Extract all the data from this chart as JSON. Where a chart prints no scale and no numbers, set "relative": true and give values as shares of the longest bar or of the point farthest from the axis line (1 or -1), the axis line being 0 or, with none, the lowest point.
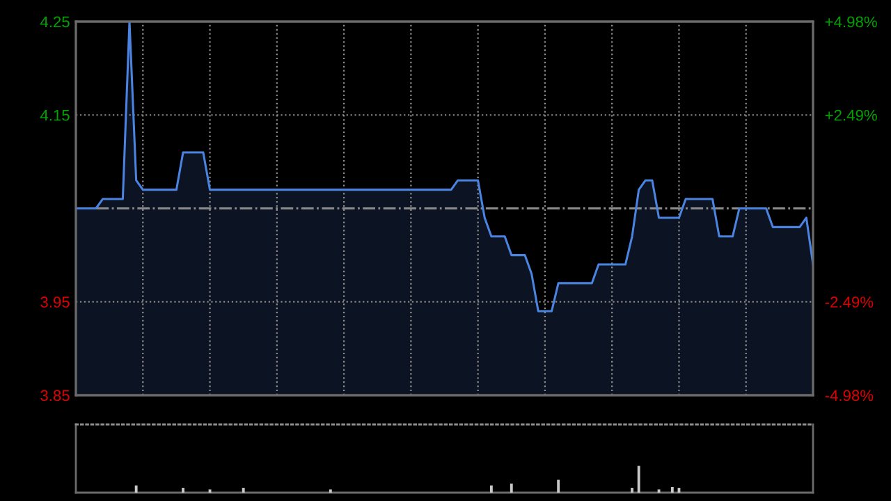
{
  "chart_data": [
    {
      "type": "area",
      "color": "#4a83e0",
      "categories": [
        null,
        null,
        null,
        null,
        null,
        null,
        null,
        null,
        null,
        null,
        null,
        null,
        null,
        null,
        null,
        null,
        null,
        null,
        null,
        null,
        null,
        null,
        null,
        null,
        null,
        null,
        null,
        null,
        null,
        null,
        null,
        null,
        null,
        null,
        null,
        null,
        null,
        null,
        null,
        null,
        null,
        null,
        null,
        null,
        null,
        null,
        null,
        null,
        null,
        null,
        null,
        null,
        null,
        null,
        null,
        null,
        null,
        null,
        null,
        null,
        null,
        null,
        null,
        null,
        null,
        null,
        null,
        null,
        null,
        null,
        null,
        null,
        null,
        null,
        null,
        null,
        null,
        null,
        null,
        null,
        null,
        null,
        null,
        null,
        null,
        null,
        null,
        null,
        null,
        null,
        null,
        null,
        null,
        null,
        null,
        null,
        null,
        null,
        null,
        null,
        null,
        null,
        null,
        null,
        null,
        null,
        null,
        null,
        null,
        null,
        null
      ],
      "values": [
        4.05,
        4.05,
        4.05,
        4.05,
        4.06,
        4.06,
        4.06,
        4.06,
        4.25,
        4.08,
        4.07,
        4.07,
        4.07,
        4.07,
        4.07,
        4.07,
        4.11,
        4.11,
        4.11,
        4.11,
        4.07,
        4.07,
        4.07,
        4.07,
        4.07,
        4.07,
        4.07,
        4.07,
        4.07,
        4.07,
        4.07,
        4.07,
        4.07,
        4.07,
        4.07,
        4.07,
        4.07,
        4.07,
        4.07,
        4.07,
        4.07,
        4.07,
        4.07,
        4.07,
        4.07,
        4.07,
        4.07,
        4.07,
        4.07,
        4.07,
        4.07,
        4.07,
        4.07,
        4.07,
        4.07,
        4.07,
        4.07,
        4.08,
        4.08,
        4.08,
        4.08,
        4.04,
        4.02,
        4.02,
        4.02,
        4.0,
        4.0,
        4.0,
        3.98,
        3.94,
        3.94,
        3.94,
        3.97,
        3.97,
        3.97,
        3.97,
        3.97,
        3.97,
        3.99,
        3.99,
        3.99,
        3.99,
        3.99,
        4.02,
        4.07,
        4.08,
        4.08,
        4.04,
        4.04,
        4.04,
        4.04,
        4.06,
        4.06,
        4.06,
        4.06,
        4.06,
        4.02,
        4.02,
        4.02,
        4.05,
        4.05,
        4.05,
        4.05,
        4.05,
        4.03,
        4.03,
        4.03,
        4.03,
        4.03,
        4.04,
        3.99
      ],
      "ylim": [
        3.85,
        4.25
      ],
      "yticks": [
        3.85,
        3.95,
        4.15,
        4.25
      ],
      "y2lim": [
        -4.98,
        4.98
      ],
      "y2ticks": [
        {
          "value": -4.98,
          "label": "-4.98%"
        },
        {
          "value": -2.49,
          "label": "-2.49%"
        },
        {
          "value": 2.49,
          "label": "+2.49%"
        },
        {
          "value": 4.98,
          "label": "+4.98%"
        }
      ],
      "ref_lines": [
        {
          "axis": "y",
          "value": 4.05,
          "color": "#8c8c8c",
          "line_style": "dashdot"
        }
      ],
      "grid": true,
      "tick_labels": "y"
    },
    {
      "type": "bar",
      "relative": true,
      "color": "#c8c8c8",
      "categories": [
        null,
        null,
        null,
        null,
        null,
        null,
        null,
        null,
        null,
        null,
        null,
        null,
        null,
        null,
        null,
        null,
        null,
        null,
        null,
        null,
        null,
        null,
        null,
        null,
        null,
        null,
        null,
        null,
        null,
        null,
        null,
        null,
        null,
        null,
        null,
        null,
        null,
        null,
        null,
        null,
        null,
        null,
        null,
        null,
        null,
        null,
        null,
        null,
        null,
        null,
        null,
        null,
        null,
        null,
        null,
        null,
        null,
        null,
        null,
        null,
        null,
        null,
        null,
        null,
        null,
        null,
        null,
        null,
        null,
        null,
        null,
        null,
        null,
        null,
        null,
        null,
        null,
        null,
        null,
        null,
        null,
        null,
        null,
        null,
        null,
        null,
        null,
        null,
        null,
        null,
        null,
        null,
        null,
        null,
        null,
        null,
        null,
        null,
        null,
        null,
        null,
        null,
        null,
        null,
        null,
        null,
        null,
        null,
        null,
        null,
        null
      ],
      "values": [
        null,
        null,
        null,
        null,
        null,
        null,
        null,
        null,
        null,
        0.27,
        null,
        null,
        null,
        null,
        null,
        null,
        0.18,
        null,
        null,
        null,
        0.12,
        null,
        null,
        null,
        null,
        0.18,
        null,
        null,
        null,
        null,
        null,
        null,
        null,
        null,
        null,
        null,
        null,
        null,
        0.12,
        null,
        null,
        null,
        null,
        null,
        null,
        null,
        null,
        null,
        null,
        null,
        null,
        null,
        null,
        null,
        null,
        null,
        null,
        null,
        null,
        null,
        null,
        null,
        0.27,
        null,
        null,
        0.34,
        null,
        null,
        null,
        null,
        null,
        null,
        0.48,
        null,
        null,
        null,
        null,
        null,
        null,
        null,
        null,
        null,
        null,
        0.18,
        1,
        null,
        null,
        0.12,
        null,
        0.21,
        0.18,
        null,
        null,
        null,
        null,
        null,
        null,
        null,
        null,
        null,
        null,
        null,
        null,
        null,
        null,
        null,
        null,
        null,
        null,
        null,
        null
      ],
      "tick_labels": false
    }
  ]
}
